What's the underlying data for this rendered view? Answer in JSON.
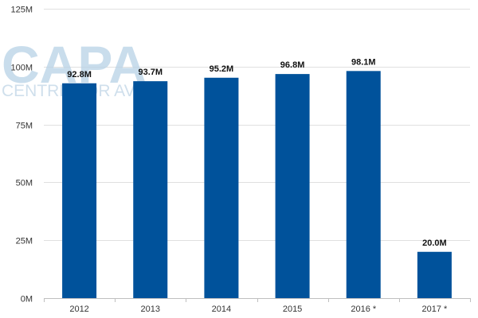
{
  "watermark": {
    "line1": "CAPA",
    "line2": "CENTRE FOR AVIATI"
  },
  "colors": {
    "bar": "#00529b",
    "grid": "#e0e0e0",
    "axis": "#bfbfbf"
  },
  "chart_data": {
    "type": "bar",
    "categories": [
      "2012",
      "2013",
      "2014",
      "2015",
      "2016 *",
      "2017 *"
    ],
    "values": [
      92.8,
      93.7,
      95.2,
      96.8,
      98.1,
      20.0
    ],
    "value_labels": [
      "92.8M",
      "93.7M",
      "95.2M",
      "96.8M",
      "98.1M",
      "20.0M"
    ],
    "y_ticks": [
      0,
      25,
      50,
      75,
      100,
      125
    ],
    "y_tick_labels": [
      "0M",
      "25M",
      "50M",
      "75M",
      "100M",
      "125M"
    ],
    "ylim": [
      0,
      125
    ],
    "grid": true,
    "title": "",
    "xlabel": "",
    "ylabel": ""
  }
}
